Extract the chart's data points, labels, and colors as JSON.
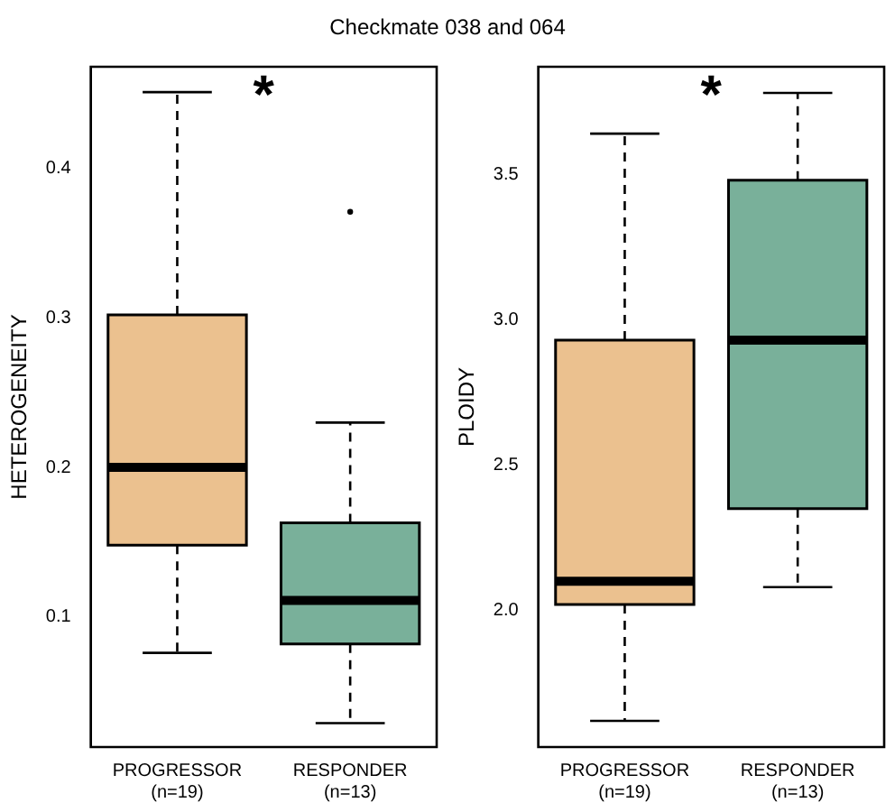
{
  "chart_data": [
    {
      "type": "box",
      "title": "Checkmate 038 and 064",
      "ylabel": "HETEROGENEITY",
      "categories": [
        "PROGRESSOR\n(n=19)",
        "RESPONDER\n(n=13)"
      ],
      "colors": [
        "#ebc18f",
        "#79b09a"
      ],
      "boxes": [
        {
          "low": 0.076,
          "q1": 0.148,
          "median": 0.2,
          "q3": 0.302,
          "high": 0.451
        },
        {
          "low": 0.029,
          "q1": 0.082,
          "median": 0.111,
          "q3": 0.163,
          "high": 0.23,
          "outliers": [
            0.371
          ]
        }
      ],
      "ylim": [
        0.013,
        0.468
      ],
      "yticks": [
        0.1,
        0.2,
        0.3,
        0.4
      ],
      "grid": false,
      "legend": false,
      "annotations": [
        "*"
      ]
    },
    {
      "type": "box",
      "ylabel": "PLOIDY",
      "categories": [
        "PROGRESSOR\n(n=19)",
        "RESPONDER\n(n=13)"
      ],
      "colors": [
        "#ebc18f",
        "#79b09a"
      ],
      "boxes": [
        {
          "low": 1.62,
          "q1": 2.02,
          "median": 2.1,
          "q3": 2.93,
          "high": 3.64
        },
        {
          "low": 2.08,
          "q1": 2.35,
          "median": 2.93,
          "q3": 3.48,
          "high": 3.78
        }
      ],
      "ylim": [
        1.53,
        3.87
      ],
      "yticks": [
        {
          "value": 2,
          "label": "2.0"
        },
        {
          "value": 2.5,
          "label": "2.5"
        },
        {
          "value": 3,
          "label": "3.0"
        },
        {
          "value": 3.5,
          "label": "3.5"
        }
      ],
      "grid": false,
      "legend": false,
      "annotations": [
        "*"
      ]
    }
  ]
}
